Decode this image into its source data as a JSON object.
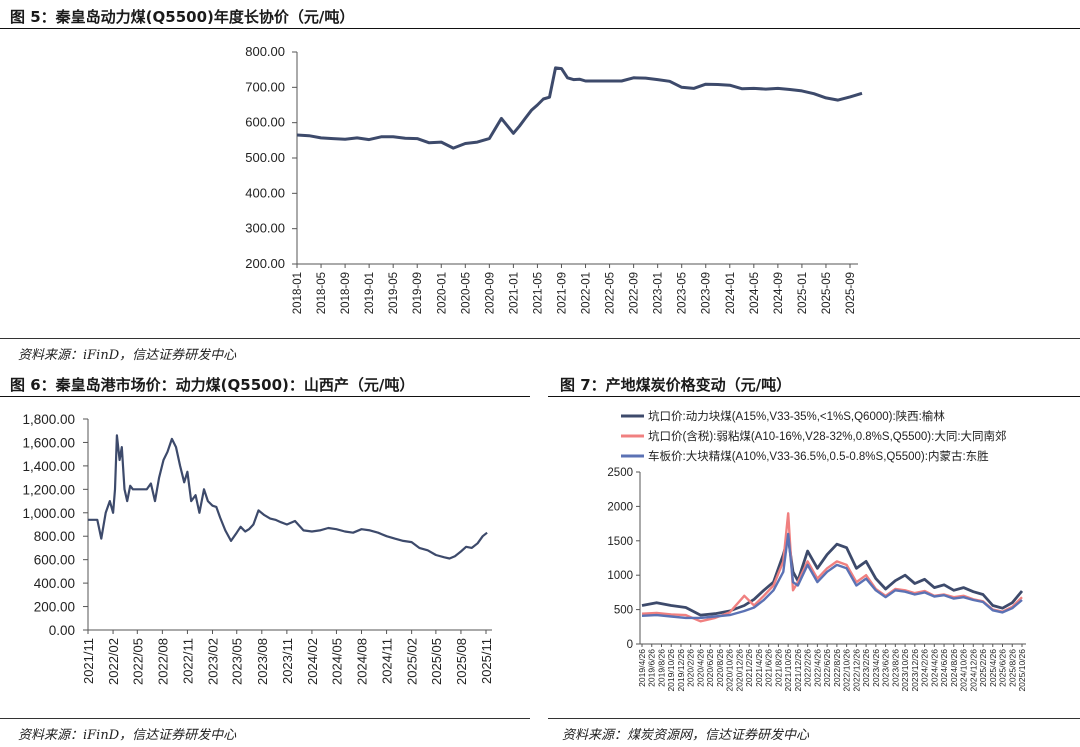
{
  "figures": {
    "fig5": {
      "title": "图  5：秦皇岛动力煤(Q5500)年度长协价（元/吨）",
      "source": "资料来源：iFinD，信达证券研发中心"
    },
    "fig6": {
      "title": "图  6：秦皇岛港市场价：动力煤(Q5500)：山西产（元/吨）",
      "source": "资料来源：iFinD，信达证券研发中心"
    },
    "fig7": {
      "title": "图  7：产地煤炭价格变动（元/吨）",
      "source": "资料来源：煤炭资源网，信达证券研发中心"
    }
  },
  "chart_data": [
    {
      "id": "fig5",
      "type": "line",
      "title": "",
      "xlabel": "",
      "ylabel": "",
      "ylim": [
        200,
        800
      ],
      "yticks": [
        "200.00",
        "300.00",
        "400.00",
        "500.00",
        "600.00",
        "700.00",
        "800.00"
      ],
      "xticks": [
        "2018-01",
        "2018-05",
        "2018-09",
        "2019-01",
        "2019-05",
        "2019-09",
        "2020-01",
        "2020-05",
        "2020-09",
        "2021-01",
        "2021-05",
        "2021-09",
        "2022-01",
        "2022-05",
        "2022-09",
        "2023-01",
        "2023-05",
        "2023-09",
        "2024-01",
        "2024-05",
        "2024-09",
        "2025-01",
        "2025-05",
        "2025-09"
      ],
      "grid": false,
      "color": "#3d4a6b",
      "series": [
        {
          "x": [
            "2018-01",
            "2018-03",
            "2018-05",
            "2018-07",
            "2018-09",
            "2018-11",
            "2019-01",
            "2019-03",
            "2019-05",
            "2019-07",
            "2019-09",
            "2019-11",
            "2020-01",
            "2020-03",
            "2020-05",
            "2020-07",
            "2020-09",
            "2020-11",
            "2021-01",
            "2021-02",
            "2021-03",
            "2021-04",
            "2021-05",
            "2021-06",
            "2021-07",
            "2021-08",
            "2021-09",
            "2021-10",
            "2021-11",
            "2021-12",
            "2022-01",
            "2022-03",
            "2022-05",
            "2022-07",
            "2022-09",
            "2022-11",
            "2023-01",
            "2023-03",
            "2023-05",
            "2023-07",
            "2023-09",
            "2023-11",
            "2024-01",
            "2024-03",
            "2024-05",
            "2024-07",
            "2024-09",
            "2024-11",
            "2025-01",
            "2025-03",
            "2025-05",
            "2025-07",
            "2025-09",
            "2025-11"
          ],
          "y": [
            565,
            563,
            557,
            555,
            553,
            557,
            552,
            560,
            560,
            556,
            555,
            543,
            545,
            528,
            541,
            545,
            555,
            612,
            570,
            590,
            613,
            635,
            650,
            667,
            672,
            755,
            753,
            727,
            722,
            723,
            718,
            718,
            718,
            718,
            727,
            726,
            722,
            717,
            700,
            697,
            709,
            708,
            706,
            696,
            697,
            695,
            697,
            694,
            690,
            682,
            670,
            664,
            673,
            683
          ]
        }
      ]
    },
    {
      "id": "fig6",
      "type": "line",
      "title": "",
      "xlabel": "",
      "ylabel": "",
      "ylim": [
        0,
        1800
      ],
      "yticks": [
        "0.00",
        "200.00",
        "400.00",
        "600.00",
        "800.00",
        "1,000.00",
        "1,200.00",
        "1,400.00",
        "1,600.00",
        "1,800.00"
      ],
      "xticks": [
        "2021/11",
        "2022/02",
        "2022/05",
        "2022/08",
        "2022/11",
        "2023/02",
        "2023/05",
        "2023/08",
        "2023/11",
        "2024/02",
        "2024/05",
        "2024/08",
        "2024/11",
        "2025/02",
        "2025/05",
        "2025/08",
        "2025/11"
      ],
      "grid": false,
      "color": "#3d4a6b",
      "series": [
        {
          "x": [
            "2021-11-01",
            "2021-11-20",
            "2021-12-05",
            "2021-12-20",
            "2022-01-05",
            "2022-01-20",
            "2022-02-01",
            "2022-02-08",
            "2022-02-15",
            "2022-02-25",
            "2022-03-05",
            "2022-03-15",
            "2022-03-25",
            "2022-04-05",
            "2022-04-15",
            "2022-05-01",
            "2022-05-20",
            "2022-06-05",
            "2022-06-20",
            "2022-07-05",
            "2022-07-20",
            "2022-08-05",
            "2022-08-20",
            "2022-09-05",
            "2022-09-20",
            "2022-10-05",
            "2022-10-20",
            "2022-11-01",
            "2022-11-15",
            "2022-12-01",
            "2022-12-15",
            "2023-01-01",
            "2023-01-15",
            "2023-02-01",
            "2023-02-15",
            "2023-03-01",
            "2023-03-20",
            "2023-04-10",
            "2023-05-01",
            "2023-05-15",
            "2023-06-01",
            "2023-06-15",
            "2023-07-01",
            "2023-07-20",
            "2023-08-10",
            "2023-09-01",
            "2023-09-20",
            "2023-10-10",
            "2023-11-01",
            "2023-12-01",
            "2024-01-01",
            "2024-02-01",
            "2024-03-01",
            "2024-04-01",
            "2024-05-01",
            "2024-06-01",
            "2024-07-01",
            "2024-08-01",
            "2024-09-01",
            "2024-10-01",
            "2024-11-01",
            "2024-12-01",
            "2025-01-01",
            "2025-02-01",
            "2025-03-01",
            "2025-04-01",
            "2025-05-01",
            "2025-06-01",
            "2025-06-20",
            "2025-07-10",
            "2025-08-01",
            "2025-08-20",
            "2025-09-10",
            "2025-10-01",
            "2025-10-20",
            "2025-11-05"
          ],
          "y": [
            940,
            940,
            940,
            780,
            1000,
            1100,
            1000,
            1200,
            1660,
            1450,
            1560,
            1200,
            1100,
            1230,
            1200,
            1200,
            1200,
            1200,
            1250,
            1100,
            1300,
            1450,
            1520,
            1630,
            1560,
            1400,
            1260,
            1350,
            1100,
            1150,
            1000,
            1200,
            1100,
            1060,
            1050,
            960,
            850,
            760,
            830,
            880,
            840,
            860,
            900,
            1020,
            980,
            950,
            940,
            920,
            900,
            930,
            850,
            840,
            850,
            870,
            860,
            840,
            830,
            860,
            850,
            830,
            800,
            780,
            760,
            750,
            700,
            680,
            640,
            620,
            610,
            630,
            670,
            710,
            700,
            740,
            800,
            830
          ]
        }
      ]
    },
    {
      "id": "fig7",
      "type": "line",
      "title": "",
      "xlabel": "",
      "ylabel": "",
      "ylim": [
        0,
        2500
      ],
      "yticks": [
        "0",
        "500",
        "1000",
        "1500",
        "2000",
        "2500"
      ],
      "xticks": [
        "2019/4/26",
        "2019/6/26",
        "2019/8/26",
        "2019/10/26",
        "2019/12/26",
        "2020/2/26",
        "2020/4/26",
        "2020/6/26",
        "2020/8/26",
        "2020/10/26",
        "2020/12/26",
        "2021/2/26",
        "2021/4/26",
        "2021/6/26",
        "2021/8/26",
        "2021/10/26",
        "2021/12/26",
        "2022/2/26",
        "2022/4/26",
        "2022/6/26",
        "2022/8/26",
        "2022/10/26",
        "2022/12/26",
        "2023/2/26",
        "2023/4/26",
        "2023/6/26",
        "2023/8/26",
        "2023/10/26",
        "2023/12/26",
        "2024/2/26",
        "2024/4/26",
        "2024/6/26",
        "2024/8/26",
        "2024/10/26",
        "2024/12/26",
        "2025/2/26",
        "2025/4/26",
        "2025/6/26",
        "2025/8/26",
        "2025/10/26"
      ],
      "grid": false,
      "legend_position": "top-left",
      "x": [
        "2019-04",
        "2019-07",
        "2019-10",
        "2020-01",
        "2020-04",
        "2020-07",
        "2020-10",
        "2021-01",
        "2021-03",
        "2021-05",
        "2021-07",
        "2021-09",
        "2021-10",
        "2021-11",
        "2021-12",
        "2022-02",
        "2022-04",
        "2022-06",
        "2022-08",
        "2022-10",
        "2022-12",
        "2023-02",
        "2023-04",
        "2023-06",
        "2023-08",
        "2023-10",
        "2023-12",
        "2024-02",
        "2024-04",
        "2024-06",
        "2024-08",
        "2024-10",
        "2024-12",
        "2025-02",
        "2025-04",
        "2025-06",
        "2025-08",
        "2025-10"
      ],
      "series": [
        {
          "name": "坑口价:动力块煤(A15%,V33-35%,<1%S,Q6000):陕西:榆林",
          "color": "#3d4a6b",
          "values": [
            560,
            600,
            560,
            530,
            420,
            440,
            480,
            560,
            650,
            780,
            900,
            1300,
            1550,
            1050,
            920,
            1350,
            1100,
            1300,
            1450,
            1400,
            1100,
            1200,
            950,
            800,
            920,
            1000,
            880,
            940,
            820,
            860,
            780,
            820,
            760,
            720,
            560,
            520,
            600,
            770
          ]
        },
        {
          "name": "坑口价(含税):弱粘煤(A10-16%,V28-32%,0.8%S,Q5500):大同:大同南郊",
          "color": "#f08080",
          "values": [
            440,
            450,
            430,
            420,
            330,
            380,
            460,
            700,
            560,
            700,
            850,
            1200,
            1900,
            780,
            900,
            1200,
            950,
            1100,
            1200,
            1150,
            900,
            1000,
            800,
            700,
            800,
            780,
            740,
            770,
            700,
            720,
            680,
            700,
            650,
            620,
            500,
            470,
            540,
            680
          ]
        },
        {
          "name": "车板价:大块精煤(A10%,V33-36.5%,0.5-0.8%S,Q5500):内蒙古:东胜",
          "color": "#5b72b4",
          "values": [
            410,
            420,
            400,
            380,
            380,
            400,
            420,
            480,
            530,
            640,
            780,
            1050,
            1600,
            900,
            850,
            1150,
            900,
            1050,
            1150,
            1100,
            850,
            950,
            780,
            680,
            780,
            760,
            720,
            750,
            690,
            710,
            660,
            680,
            640,
            610,
            490,
            460,
            520,
            640
          ]
        }
      ]
    }
  ]
}
